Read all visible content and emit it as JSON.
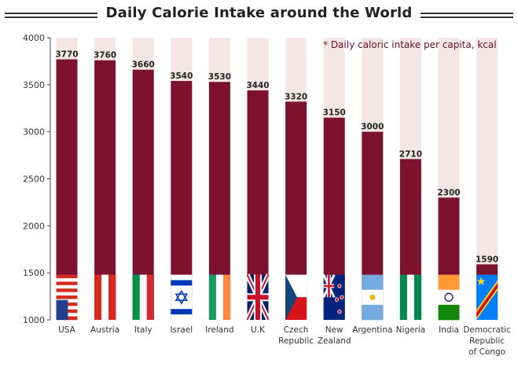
{
  "chart_data": {
    "type": "bar",
    "title": "Daily Calorie Intake around the World",
    "note": "* Daily caloric intake per capita, kcal",
    "categories": [
      "USA",
      "Austria",
      "Italy",
      "Israel",
      "Ireland",
      "U.K",
      "Czech Republic",
      "New Zealand",
      "Argentina",
      "Nigeria",
      "India",
      "Democratic Republic of Congo"
    ],
    "category_lines": [
      [
        "USA"
      ],
      [
        "Austria"
      ],
      [
        "Italy"
      ],
      [
        "Israel"
      ],
      [
        "Ireland"
      ],
      [
        "U.K"
      ],
      [
        "Czech",
        "Republic"
      ],
      [
        "New",
        "Zealand"
      ],
      [
        "Argentina"
      ],
      [
        "Nigeria"
      ],
      [
        "India"
      ],
      [
        "Democratic",
        "Republic",
        "of Congo"
      ]
    ],
    "values": [
      3770,
      3760,
      3660,
      3540,
      3530,
      3440,
      3320,
      3150,
      3000,
      2710,
      2300,
      1590
    ],
    "value_labels": [
      "3770",
      "3760",
      "3660",
      "3540",
      "3530",
      "3440",
      "3320",
      "3150",
      "3000",
      "2710",
      "2300",
      "1590"
    ],
    "yticks": [
      1000,
      1500,
      2000,
      2500,
      3000,
      3500,
      4000
    ],
    "ylim": [
      1000,
      4000
    ],
    "flag_band": [
      1000,
      1480
    ],
    "grid": true,
    "colors": {
      "bar": "#7d1130",
      "track": "#f4e6e6",
      "text": "#222222",
      "note": "#6b1029"
    },
    "flags": [
      "usa",
      "austria",
      "italy",
      "israel",
      "ireland",
      "uk",
      "czech",
      "newzealand",
      "argentina",
      "nigeria",
      "india",
      "drcongo"
    ]
  }
}
